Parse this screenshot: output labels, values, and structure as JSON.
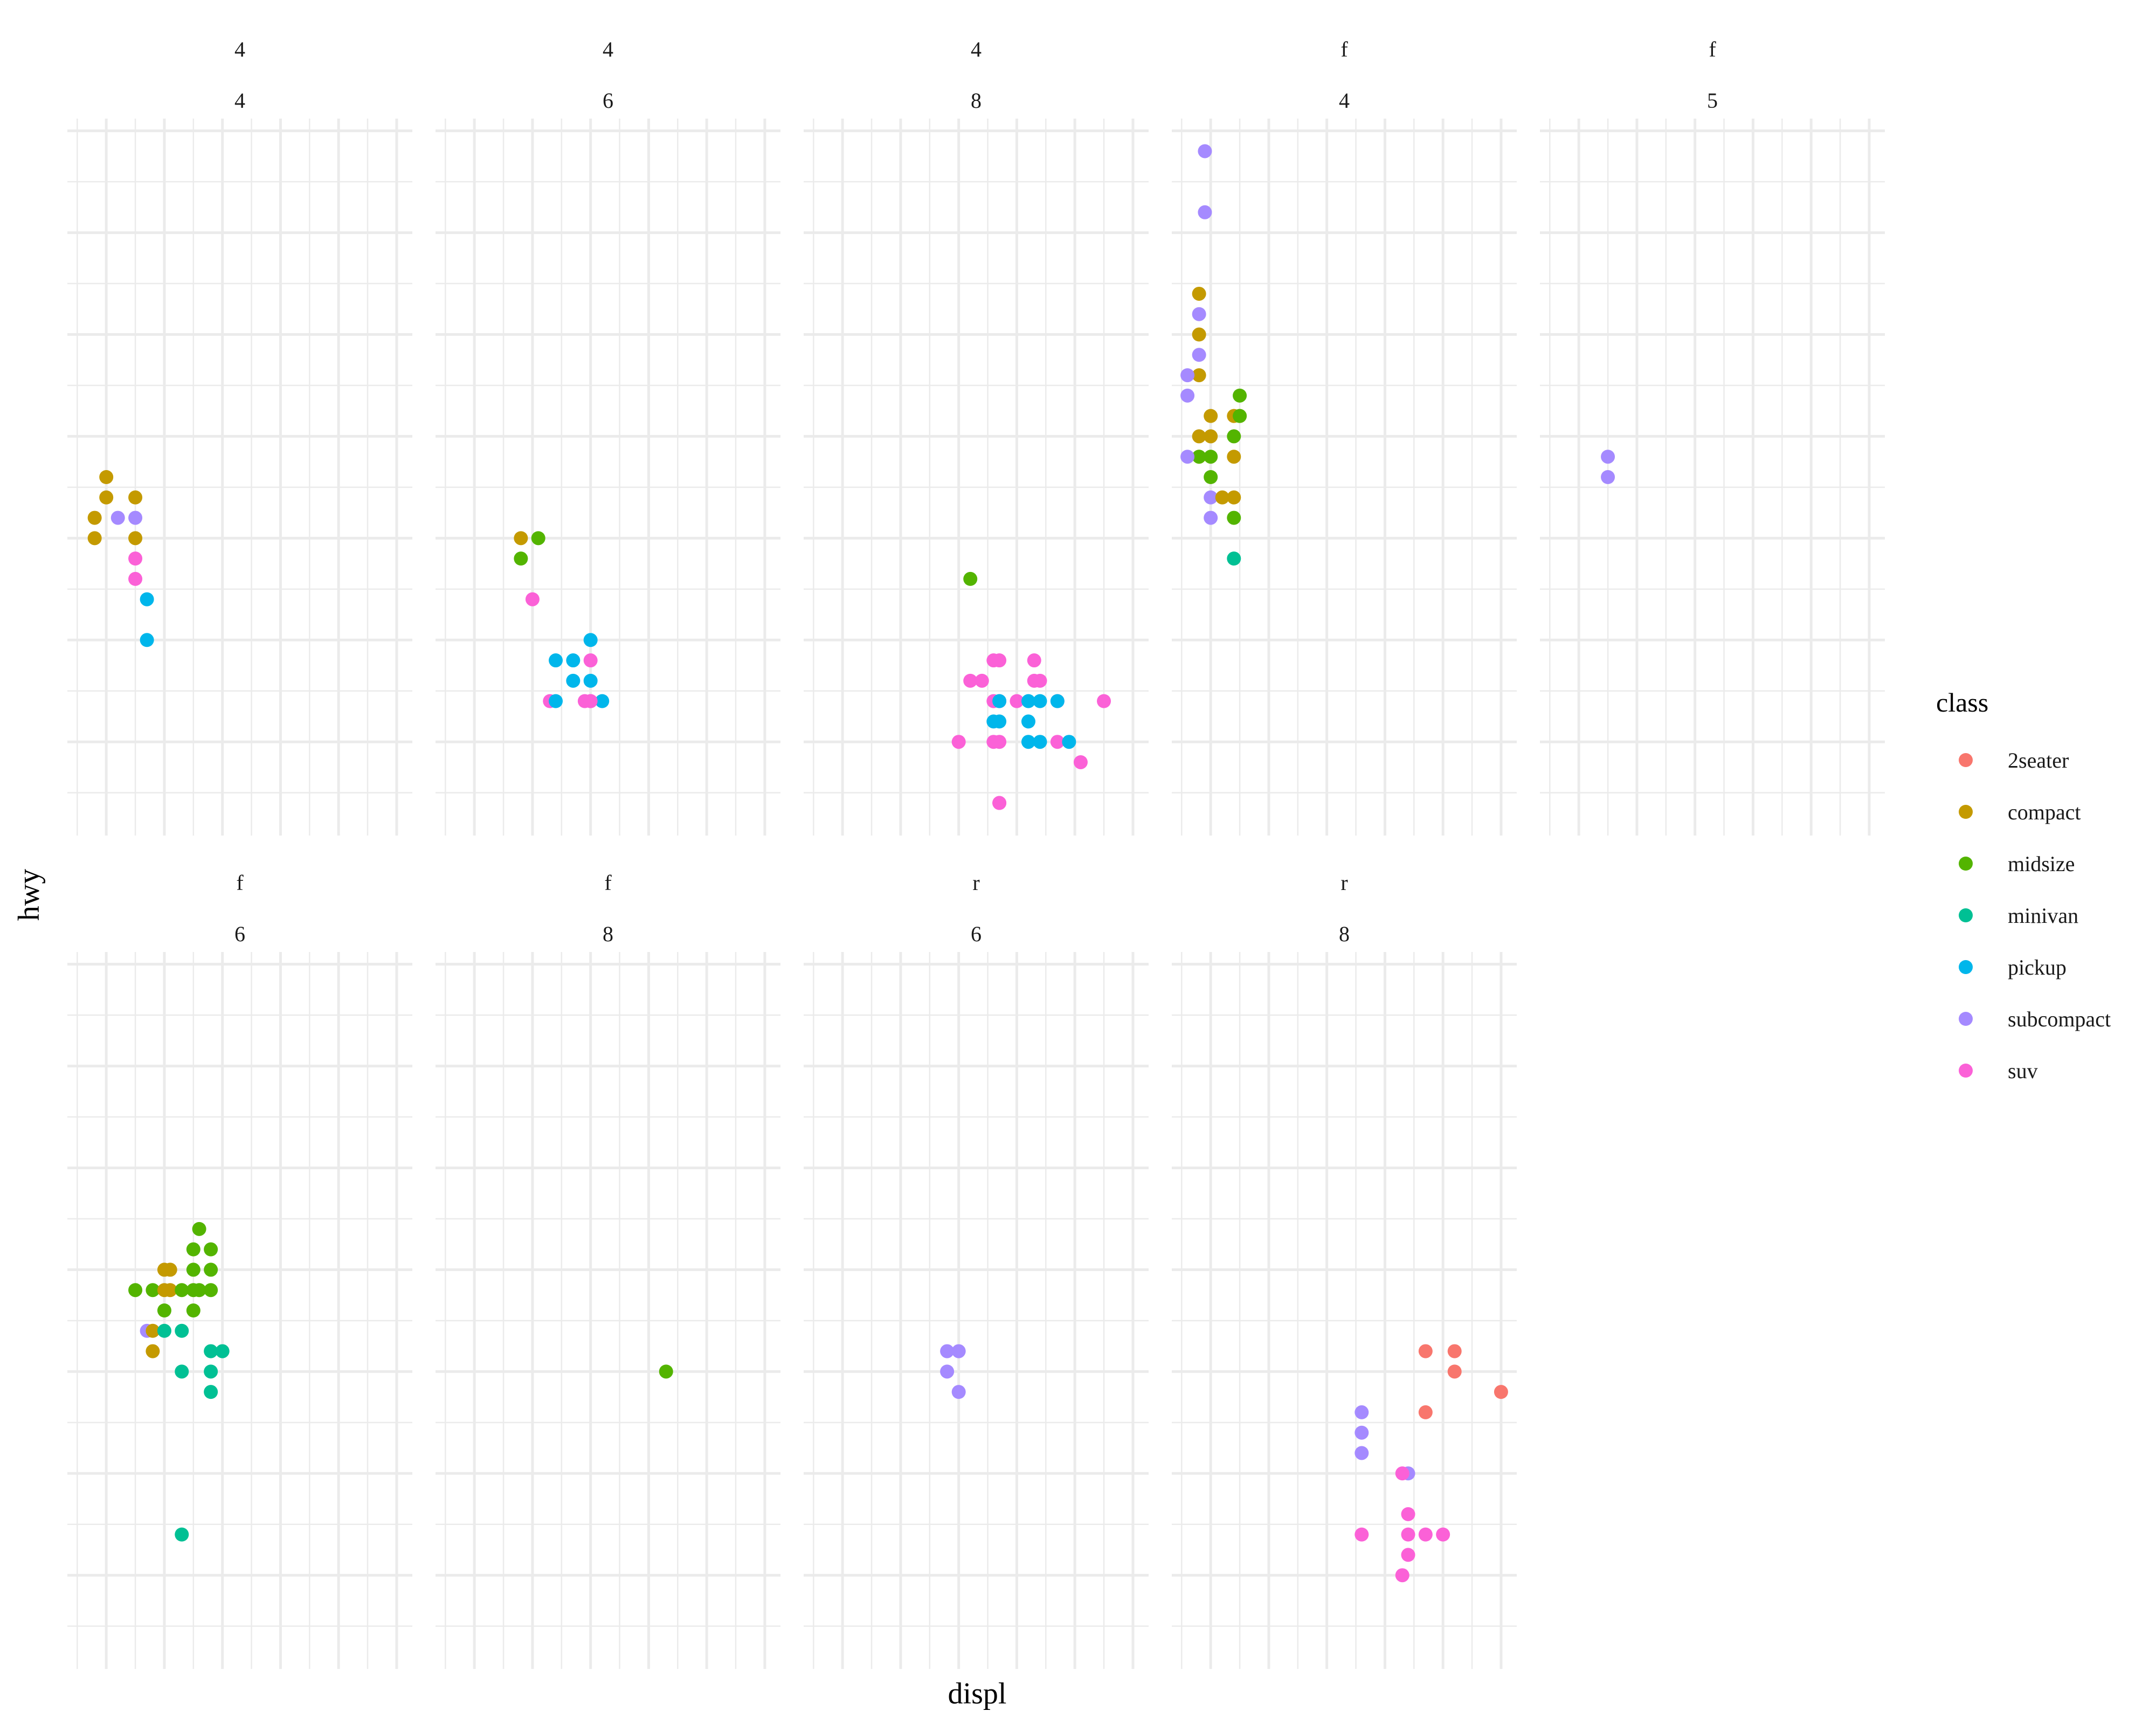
{
  "chart_data": {
    "type": "scatter",
    "title": "",
    "xlabel": "displ",
    "ylabel": "hwy",
    "xlim": [
      1.33,
      7.27
    ],
    "ylim": [
      10.4,
      45.6
    ],
    "x_major_breaks": [
      2,
      3,
      4,
      5,
      6,
      7
    ],
    "x_minor_breaks": [
      1.5,
      2.5,
      3.5,
      4.5,
      5.5,
      6.5
    ],
    "y_major_breaks": [
      15,
      20,
      25,
      30,
      35,
      40,
      45
    ],
    "y_minor_breaks": [
      12.5,
      17.5,
      22.5,
      27.5,
      32.5,
      37.5,
      42.5
    ],
    "grid": true,
    "axis_tick_labels_shown": false,
    "facet_rows": "drv",
    "facet_cols": "cyl",
    "legend": {
      "title": "class",
      "placement": "right",
      "entries": [
        {
          "label": "2seater",
          "color": "#F8766D"
        },
        {
          "label": "compact",
          "color": "#C49A00"
        },
        {
          "label": "midsize",
          "color": "#53B400"
        },
        {
          "label": "minivan",
          "color": "#00C094"
        },
        {
          "label": "pickup",
          "color": "#00B6EB"
        },
        {
          "label": "subcompact",
          "color": "#A58AFF"
        },
        {
          "label": "suv",
          "color": "#FB61D7"
        }
      ]
    },
    "panels": [
      {
        "strip": [
          "4",
          "4"
        ],
        "points": [
          {
            "class": "compact",
            "x": 1.8,
            "y": 26
          },
          {
            "class": "compact",
            "x": 1.8,
            "y": 25
          },
          {
            "class": "compact",
            "x": 2.0,
            "y": 28
          },
          {
            "class": "compact",
            "x": 2.0,
            "y": 27
          },
          {
            "class": "compact",
            "x": 2.5,
            "y": 27
          },
          {
            "class": "compact",
            "x": 2.5,
            "y": 25
          },
          {
            "class": "subcompact",
            "x": 2.2,
            "y": 26
          },
          {
            "class": "subcompact",
            "x": 2.5,
            "y": 26
          },
          {
            "class": "suv",
            "x": 2.5,
            "y": 24
          },
          {
            "class": "suv",
            "x": 2.5,
            "y": 23
          },
          {
            "class": "pickup",
            "x": 2.7,
            "y": 22
          },
          {
            "class": "pickup",
            "x": 2.7,
            "y": 20
          }
        ]
      },
      {
        "strip": [
          "4",
          "6"
        ],
        "points": [
          {
            "class": "compact",
            "x": 2.8,
            "y": 25
          },
          {
            "class": "midsize",
            "x": 3.1,
            "y": 25
          },
          {
            "class": "midsize",
            "x": 2.8,
            "y": 24
          },
          {
            "class": "suv",
            "x": 3.0,
            "y": 22
          },
          {
            "class": "pickup",
            "x": 3.7,
            "y": 19
          },
          {
            "class": "suv",
            "x": 4.0,
            "y": 19
          },
          {
            "class": "suv",
            "x": 4.0,
            "y": 17
          },
          {
            "class": "pickup",
            "x": 4.0,
            "y": 20
          },
          {
            "class": "pickup",
            "x": 4.0,
            "y": 18
          },
          {
            "class": "pickup",
            "x": 3.7,
            "y": 18
          },
          {
            "class": "suv",
            "x": 3.3,
            "y": 17
          },
          {
            "class": "pickup",
            "x": 3.4,
            "y": 17
          },
          {
            "class": "pickup",
            "x": 4.2,
            "y": 17
          },
          {
            "class": "suv",
            "x": 3.9,
            "y": 17
          },
          {
            "class": "suv",
            "x": 4.0,
            "y": 17
          },
          {
            "class": "pickup",
            "x": 3.4,
            "y": 19
          }
        ]
      },
      {
        "strip": [
          "4",
          "8"
        ],
        "points": [
          {
            "class": "midsize",
            "x": 4.2,
            "y": 23
          },
          {
            "class": "suv",
            "x": 4.2,
            "y": 18
          },
          {
            "class": "suv",
            "x": 4.6,
            "y": 19
          },
          {
            "class": "suv",
            "x": 4.6,
            "y": 17
          },
          {
            "class": "suv",
            "x": 4.7,
            "y": 19
          },
          {
            "class": "suv",
            "x": 4.7,
            "y": 17
          },
          {
            "class": "suv",
            "x": 4.0,
            "y": 15
          },
          {
            "class": "suv",
            "x": 4.4,
            "y": 18
          },
          {
            "class": "suv",
            "x": 5.3,
            "y": 18
          },
          {
            "class": "suv",
            "x": 5.4,
            "y": 18
          },
          {
            "class": "suv",
            "x": 5.7,
            "y": 17
          },
          {
            "class": "suv",
            "x": 4.6,
            "y": 15
          },
          {
            "class": "suv",
            "x": 4.7,
            "y": 15
          },
          {
            "class": "suv",
            "x": 4.7,
            "y": 12
          },
          {
            "class": "suv",
            "x": 5.7,
            "y": 15
          },
          {
            "class": "suv",
            "x": 6.1,
            "y": 14
          },
          {
            "class": "suv",
            "x": 5.0,
            "y": 17
          },
          {
            "class": "suv",
            "x": 6.5,
            "y": 17
          },
          {
            "class": "suv",
            "x": 5.3,
            "y": 19
          },
          {
            "class": "pickup",
            "x": 4.7,
            "y": 17
          },
          {
            "class": "pickup",
            "x": 4.7,
            "y": 16
          },
          {
            "class": "pickup",
            "x": 4.6,
            "y": 16
          },
          {
            "class": "pickup",
            "x": 5.2,
            "y": 17
          },
          {
            "class": "pickup",
            "x": 5.2,
            "y": 16
          },
          {
            "class": "pickup",
            "x": 5.2,
            "y": 15
          },
          {
            "class": "pickup",
            "x": 5.4,
            "y": 15
          },
          {
            "class": "pickup",
            "x": 5.4,
            "y": 17
          },
          {
            "class": "pickup",
            "x": 5.7,
            "y": 17
          },
          {
            "class": "pickup",
            "x": 5.9,
            "y": 15
          },
          {
            "class": "suv",
            "x": 4.7,
            "y": 12
          }
        ]
      },
      {
        "strip": [
          "f",
          "4"
        ],
        "points": [
          {
            "class": "subcompact",
            "x": 1.9,
            "y": 44
          },
          {
            "class": "subcompact",
            "x": 1.9,
            "y": 41
          },
          {
            "class": "compact",
            "x": 1.8,
            "y": 37
          },
          {
            "class": "subcompact",
            "x": 1.8,
            "y": 36
          },
          {
            "class": "compact",
            "x": 1.8,
            "y": 35
          },
          {
            "class": "subcompact",
            "x": 1.8,
            "y": 34
          },
          {
            "class": "compact",
            "x": 1.8,
            "y": 33
          },
          {
            "class": "subcompact",
            "x": 1.6,
            "y": 33
          },
          {
            "class": "subcompact",
            "x": 1.6,
            "y": 32
          },
          {
            "class": "midsize",
            "x": 2.5,
            "y": 32
          },
          {
            "class": "compact",
            "x": 2.0,
            "y": 31
          },
          {
            "class": "compact",
            "x": 2.4,
            "y": 31
          },
          {
            "class": "compact",
            "x": 2.5,
            "y": 31
          },
          {
            "class": "midsize",
            "x": 2.5,
            "y": 31
          },
          {
            "class": "compact",
            "x": 1.8,
            "y": 30
          },
          {
            "class": "compact",
            "x": 2.0,
            "y": 30
          },
          {
            "class": "midsize",
            "x": 2.4,
            "y": 30
          },
          {
            "class": "compact",
            "x": 1.8,
            "y": 29
          },
          {
            "class": "midsize",
            "x": 2.0,
            "y": 29
          },
          {
            "class": "compact",
            "x": 2.4,
            "y": 29
          },
          {
            "class": "midsize",
            "x": 1.8,
            "y": 29
          },
          {
            "class": "subcompact",
            "x": 1.6,
            "y": 29
          },
          {
            "class": "midsize",
            "x": 2.0,
            "y": 28
          },
          {
            "class": "subcompact",
            "x": 2.0,
            "y": 27
          },
          {
            "class": "compact",
            "x": 2.2,
            "y": 27
          },
          {
            "class": "compact",
            "x": 2.4,
            "y": 27
          },
          {
            "class": "subcompact",
            "x": 2.0,
            "y": 26
          },
          {
            "class": "midsize",
            "x": 2.4,
            "y": 26
          },
          {
            "class": "minivan",
            "x": 2.4,
            "y": 24
          }
        ]
      },
      {
        "strip": [
          "f",
          "5"
        ],
        "points": [
          {
            "class": "subcompact",
            "x": 2.5,
            "y": 29
          },
          {
            "class": "subcompact",
            "x": 2.5,
            "y": 28
          }
        ]
      },
      {
        "strip": [
          "f",
          "6"
        ],
        "points": [
          {
            "class": "midsize",
            "x": 3.6,
            "y": 32
          },
          {
            "class": "midsize",
            "x": 3.5,
            "y": 31
          },
          {
            "class": "midsize",
            "x": 3.8,
            "y": 31
          },
          {
            "class": "midsize",
            "x": 3.5,
            "y": 30
          },
          {
            "class": "midsize",
            "x": 3.8,
            "y": 30
          },
          {
            "class": "compact",
            "x": 3.0,
            "y": 30
          },
          {
            "class": "compact",
            "x": 3.1,
            "y": 30
          },
          {
            "class": "midsize",
            "x": 2.5,
            "y": 29
          },
          {
            "class": "midsize",
            "x": 2.8,
            "y": 29
          },
          {
            "class": "compact",
            "x": 3.0,
            "y": 29
          },
          {
            "class": "compact",
            "x": 3.1,
            "y": 29
          },
          {
            "class": "midsize",
            "x": 3.3,
            "y": 29
          },
          {
            "class": "midsize",
            "x": 3.5,
            "y": 29
          },
          {
            "class": "midsize",
            "x": 3.6,
            "y": 29
          },
          {
            "class": "midsize",
            "x": 3.8,
            "y": 29
          },
          {
            "class": "midsize",
            "x": 3.0,
            "y": 28
          },
          {
            "class": "midsize",
            "x": 3.5,
            "y": 28
          },
          {
            "class": "subcompact",
            "x": 2.7,
            "y": 27
          },
          {
            "class": "compact",
            "x": 2.8,
            "y": 27
          },
          {
            "class": "minivan",
            "x": 3.0,
            "y": 27
          },
          {
            "class": "minivan",
            "x": 3.3,
            "y": 27
          },
          {
            "class": "compact",
            "x": 2.8,
            "y": 26
          },
          {
            "class": "minivan",
            "x": 3.8,
            "y": 26
          },
          {
            "class": "minivan",
            "x": 4.0,
            "y": 26
          },
          {
            "class": "minivan",
            "x": 3.3,
            "y": 25
          },
          {
            "class": "minivan",
            "x": 3.8,
            "y": 25
          },
          {
            "class": "minivan",
            "x": 3.8,
            "y": 24
          },
          {
            "class": "minivan",
            "x": 3.3,
            "y": 17
          }
        ]
      },
      {
        "strip": [
          "f",
          "8"
        ],
        "points": [
          {
            "class": "midsize",
            "x": 5.3,
            "y": 25
          }
        ]
      },
      {
        "strip": [
          "r",
          "6"
        ],
        "points": [
          {
            "class": "subcompact",
            "x": 3.8,
            "y": 26
          },
          {
            "class": "subcompact",
            "x": 4.0,
            "y": 26
          },
          {
            "class": "subcompact",
            "x": 3.8,
            "y": 25
          },
          {
            "class": "subcompact",
            "x": 4.0,
            "y": 24
          }
        ]
      },
      {
        "strip": [
          "r",
          "8"
        ],
        "points": [
          {
            "class": "2seater",
            "x": 5.7,
            "y": 26
          },
          {
            "class": "2seater",
            "x": 6.2,
            "y": 26
          },
          {
            "class": "2seater",
            "x": 6.2,
            "y": 25
          },
          {
            "class": "2seater",
            "x": 7.0,
            "y": 24
          },
          {
            "class": "2seater",
            "x": 5.7,
            "y": 23
          },
          {
            "class": "subcompact",
            "x": 4.6,
            "y": 23
          },
          {
            "class": "subcompact",
            "x": 4.6,
            "y": 22
          },
          {
            "class": "subcompact",
            "x": 4.6,
            "y": 21
          },
          {
            "class": "subcompact",
            "x": 5.4,
            "y": 20
          },
          {
            "class": "suv",
            "x": 5.3,
            "y": 20
          },
          {
            "class": "suv",
            "x": 5.4,
            "y": 18
          },
          {
            "class": "suv",
            "x": 4.6,
            "y": 17
          },
          {
            "class": "suv",
            "x": 5.4,
            "y": 17
          },
          {
            "class": "suv",
            "x": 5.7,
            "y": 17
          },
          {
            "class": "suv",
            "x": 6.0,
            "y": 17
          },
          {
            "class": "suv",
            "x": 5.4,
            "y": 16
          },
          {
            "class": "suv",
            "x": 5.3,
            "y": 15
          }
        ]
      }
    ]
  }
}
